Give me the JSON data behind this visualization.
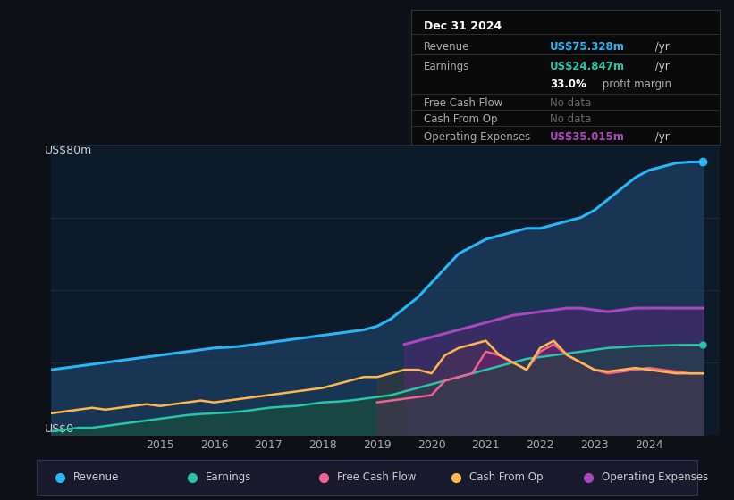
{
  "bg_color": "#0d1117",
  "plot_bg_color": "#0d1a2a",
  "title": "Dec 31 2024",
  "ylabel": "US$80m",
  "ylabel_bottom": "US$0",
  "ylim": [
    0,
    80
  ],
  "xlim": [
    2013.0,
    2025.3
  ],
  "x_ticks": [
    2015,
    2016,
    2017,
    2018,
    2019,
    2020,
    2021,
    2022,
    2023,
    2024
  ],
  "revenue_color": "#29b6f6",
  "earnings_color": "#26c6a8",
  "fcf_color": "#f06292",
  "cashfromop_color": "#ffb74d",
  "opex_color": "#ab47bc",
  "revenue_fill_color": "#1a3a5c",
  "earnings_fill_color": "#1a4a40",
  "fcf_fill_color": "#7b2060",
  "opex_fill_color": "#6a2080",
  "info_box_bg": "#0a0a0a",
  "info_box_border": "#333333",
  "revenue_label": "Revenue",
  "earnings_label": "Earnings",
  "fcf_label": "Free Cash Flow",
  "cashfromop_label": "Cash From Op",
  "opex_label": "Operating Expenses",
  "legend_bg": "#1a1a2e",
  "legend_border": "#333355",
  "grid_color": "#1e2a3a",
  "revenue_x": [
    2013.0,
    2013.25,
    2013.5,
    2013.75,
    2014.0,
    2014.25,
    2014.5,
    2014.75,
    2015.0,
    2015.25,
    2015.5,
    2015.75,
    2016.0,
    2016.25,
    2016.5,
    2016.75,
    2017.0,
    2017.25,
    2017.5,
    2017.75,
    2018.0,
    2018.25,
    2018.5,
    2018.75,
    2019.0,
    2019.25,
    2019.5,
    2019.75,
    2020.0,
    2020.25,
    2020.5,
    2020.75,
    2021.0,
    2021.25,
    2021.5,
    2021.75,
    2022.0,
    2022.25,
    2022.5,
    2022.75,
    2023.0,
    2023.25,
    2023.5,
    2023.75,
    2024.0,
    2024.25,
    2024.5,
    2024.75,
    2025.0
  ],
  "revenue_y": [
    18,
    18.5,
    19,
    19.5,
    20,
    20.5,
    21,
    21.5,
    22,
    22.5,
    23,
    23.5,
    24,
    24.2,
    24.5,
    25,
    25.5,
    26,
    26.5,
    27,
    27.5,
    28,
    28.5,
    29,
    30,
    32,
    35,
    38,
    42,
    46,
    50,
    52,
    54,
    55,
    56,
    57,
    57,
    58,
    59,
    60,
    62,
    65,
    68,
    71,
    73,
    74,
    75,
    75.3,
    75.3
  ],
  "earnings_x": [
    2013.0,
    2013.25,
    2013.5,
    2013.75,
    2014.0,
    2014.25,
    2014.5,
    2014.75,
    2015.0,
    2015.25,
    2015.5,
    2015.75,
    2016.0,
    2016.25,
    2016.5,
    2016.75,
    2017.0,
    2017.25,
    2017.5,
    2017.75,
    2018.0,
    2018.25,
    2018.5,
    2018.75,
    2019.0,
    2019.25,
    2019.5,
    2019.75,
    2020.0,
    2020.25,
    2020.5,
    2020.75,
    2021.0,
    2021.25,
    2021.5,
    2021.75,
    2022.0,
    2022.25,
    2022.5,
    2022.75,
    2023.0,
    2023.25,
    2023.5,
    2023.75,
    2024.0,
    2024.25,
    2024.5,
    2024.75,
    2025.0
  ],
  "earnings_y": [
    1,
    1.5,
    2,
    2,
    2.5,
    3,
    3.5,
    4,
    4.5,
    5,
    5.5,
    5.8,
    6,
    6.2,
    6.5,
    7,
    7.5,
    7.8,
    8,
    8.5,
    9,
    9.2,
    9.5,
    10,
    10.5,
    11,
    12,
    13,
    14,
    15,
    16,
    17,
    18,
    19,
    20,
    21,
    21.5,
    22,
    22.5,
    23,
    23.5,
    24,
    24.2,
    24.5,
    24.6,
    24.7,
    24.8,
    24.85,
    24.85
  ],
  "fcf_x": [
    2019.0,
    2019.25,
    2019.5,
    2019.75,
    2020.0,
    2020.25,
    2020.5,
    2020.75,
    2021.0,
    2021.25,
    2021.5,
    2021.75,
    2022.0,
    2022.25,
    2022.5,
    2022.75,
    2023.0,
    2023.25,
    2023.5,
    2023.75,
    2024.0,
    2024.25,
    2024.5,
    2024.75,
    2025.0
  ],
  "fcf_y": [
    9,
    9.5,
    10,
    10.5,
    11,
    15,
    16,
    17,
    23,
    22,
    20,
    18,
    23,
    25,
    22,
    20,
    18,
    17,
    17.5,
    18,
    18.5,
    18,
    17.5,
    17,
    17
  ],
  "cashfromop_x": [
    2013.0,
    2013.25,
    2013.5,
    2013.75,
    2014.0,
    2014.25,
    2014.5,
    2014.75,
    2015.0,
    2015.25,
    2015.5,
    2015.75,
    2016.0,
    2016.25,
    2016.5,
    2016.75,
    2017.0,
    2017.25,
    2017.5,
    2017.75,
    2018.0,
    2018.25,
    2018.5,
    2018.75,
    2019.0,
    2019.25,
    2019.5,
    2019.75,
    2020.0,
    2020.25,
    2020.5,
    2020.75,
    2021.0,
    2021.25,
    2021.5,
    2021.75,
    2022.0,
    2022.25,
    2022.5,
    2022.75,
    2023.0,
    2023.25,
    2023.5,
    2023.75,
    2024.0,
    2024.25,
    2024.5,
    2024.75,
    2025.0
  ],
  "cashfromop_y": [
    6,
    6.5,
    7,
    7.5,
    7,
    7.5,
    8,
    8.5,
    8,
    8.5,
    9,
    9.5,
    9,
    9.5,
    10,
    10.5,
    11,
    11.5,
    12,
    12.5,
    13,
    14,
    15,
    16,
    16,
    17,
    18,
    18,
    17,
    22,
    24,
    25,
    26,
    22,
    20,
    18,
    24,
    26,
    22,
    20,
    18,
    17.5,
    18,
    18.5,
    18,
    17.5,
    17,
    17,
    17
  ],
  "opex_x": [
    2019.5,
    2019.75,
    2020.0,
    2020.25,
    2020.5,
    2020.75,
    2021.0,
    2021.25,
    2021.5,
    2021.75,
    2022.0,
    2022.25,
    2022.5,
    2022.75,
    2023.0,
    2023.25,
    2023.5,
    2023.75,
    2024.0,
    2024.25,
    2024.5,
    2024.75,
    2025.0
  ],
  "opex_y": [
    25,
    26,
    27,
    28,
    29,
    30,
    31,
    32,
    33,
    33.5,
    34,
    34.5,
    35,
    35,
    34.5,
    34,
    34.5,
    35,
    35.015,
    35.015,
    35,
    35,
    35
  ],
  "info_revenue_val": "US$75.328m",
  "info_revenue_unit": " /yr",
  "info_earnings_val": "US$24.847m",
  "info_earnings_unit": " /yr",
  "info_margin": "33.0%",
  "info_margin_text": " profit margin",
  "info_fcf": "No data",
  "info_cashfromop": "No data",
  "info_opex_val": "US$35.015m",
  "info_opex_unit": " /yr"
}
